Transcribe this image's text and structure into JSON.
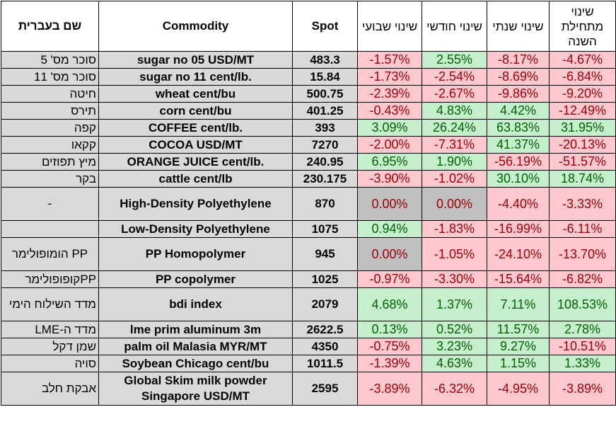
{
  "headers": {
    "hebrew_name": "שם בעברית",
    "commodity": "Commodity",
    "spot": "Spot",
    "weekly": "שינוי שבועי",
    "monthly": "שינוי חודשי",
    "yearly": "שינוי שנתי",
    "ytd": "שינוי מתחילת השנה"
  },
  "colors": {
    "negative_bg": "#ffc7ce",
    "negative_text": "#9c0006",
    "positive_bg": "#c6efce",
    "positive_text": "#006100",
    "zero_bg": "#bfbfbf",
    "label_bg": "#d9d9d9"
  },
  "rows": [
    {
      "heb": "סוכר מס' 5",
      "name": "sugar no 05 USD/MT",
      "spot": "483.3",
      "weekly": "-1.57%",
      "monthly": "2.55%",
      "yearly": "-8.17%",
      "ytd": "-4.67%"
    },
    {
      "heb": "סוכר מס' 11",
      "name": "sugar no 11 cent/lb.",
      "spot": "15.84",
      "weekly": "-1.73%",
      "monthly": "-2.54%",
      "yearly": "-8.69%",
      "ytd": "-6.84%"
    },
    {
      "heb": "חיטה",
      "name": "wheat cent/bu",
      "spot": "500.75",
      "weekly": "-2.39%",
      "monthly": "-2.67%",
      "yearly": "-9.86%",
      "ytd": "-9.20%"
    },
    {
      "heb": "תירס",
      "name": "corn cent/bu",
      "spot": "401.25",
      "weekly": "-0.43%",
      "monthly": "4.83%",
      "yearly": "4.42%",
      "ytd": "-12.49%"
    },
    {
      "heb": "קפה",
      "name": "COFFEE cent/lb.",
      "spot": "393",
      "weekly": "3.09%",
      "monthly": "26.24%",
      "yearly": "63.83%",
      "ytd": "31.95%"
    },
    {
      "heb": "קקאו",
      "name": "COCOA USD/MT",
      "spot": "7270",
      "weekly": "-2.00%",
      "monthly": "-7.31%",
      "yearly": "41.37%",
      "ytd": "-20.13%"
    },
    {
      "heb": "מיץ תפוזים",
      "name": "ORANGE JUICE cent/lb.",
      "spot": "240.95",
      "weekly": "6.95%",
      "monthly": "1.90%",
      "yearly": "-56.19%",
      "ytd": "-51.57%"
    },
    {
      "heb": "בקר",
      "name": "cattle cent/lb",
      "spot": "230.175",
      "weekly": "-3.90%",
      "monthly": "-1.02%",
      "yearly": "30.10%",
      "ytd": "18.74%"
    },
    {
      "heb": "-",
      "name": "High-Density Polyethylene",
      "spot": "870",
      "weekly": "0.00%",
      "monthly": "0.00%",
      "yearly": "-4.40%",
      "ytd": "-3.33%"
    },
    {
      "heb": "",
      "name": "Low-Density Polyethylene",
      "spot": "1075",
      "weekly": "0.94%",
      "monthly": "-1.83%",
      "yearly": "-16.99%",
      "ytd": "-6.11%"
    },
    {
      "heb": "PP הומופולימר",
      "name": "PP Homopolymer",
      "spot": "945",
      "weekly": "0.00%",
      "monthly": "-1.05%",
      "yearly": "-24.10%",
      "ytd": "-13.70%"
    },
    {
      "heb": "PPקופופולימר",
      "name": "PP copolymer",
      "spot": "1025",
      "weekly": "-0.97%",
      "monthly": "-3.30%",
      "yearly": "-15.64%",
      "ytd": "-6.82%"
    },
    {
      "heb": "מדד השילוח הימי",
      "name": "bdi index",
      "spot": "2079",
      "weekly": "4.68%",
      "monthly": "1.37%",
      "yearly": "7.11%",
      "ytd": "108.53%"
    },
    {
      "heb": "מדד ה-LME",
      "name": "lme prim aluminum 3m",
      "spot": "2622.5",
      "weekly": "0.13%",
      "monthly": "0.52%",
      "yearly": "11.57%",
      "ytd": "2.78%"
    },
    {
      "heb": "שמן דקל",
      "name": "palm oil Malasia MYR/MT",
      "spot": "4350",
      "weekly": "-0.75%",
      "monthly": "3.23%",
      "yearly": "9.27%",
      "ytd": "-10.51%"
    },
    {
      "heb": "סויה",
      "name": "Soybean Chicago cent/bu",
      "spot": "1011.5",
      "weekly": "-1.39%",
      "monthly": "4.63%",
      "yearly": "1.15%",
      "ytd": "1.33%"
    },
    {
      "heb": "אבקת חלב",
      "name": "Global Skim milk powder Singapore USD/MT",
      "spot": "2595",
      "weekly": "-3.89%",
      "monthly": "-6.32%",
      "yearly": "-4.95%",
      "ytd": "-3.89%"
    }
  ]
}
